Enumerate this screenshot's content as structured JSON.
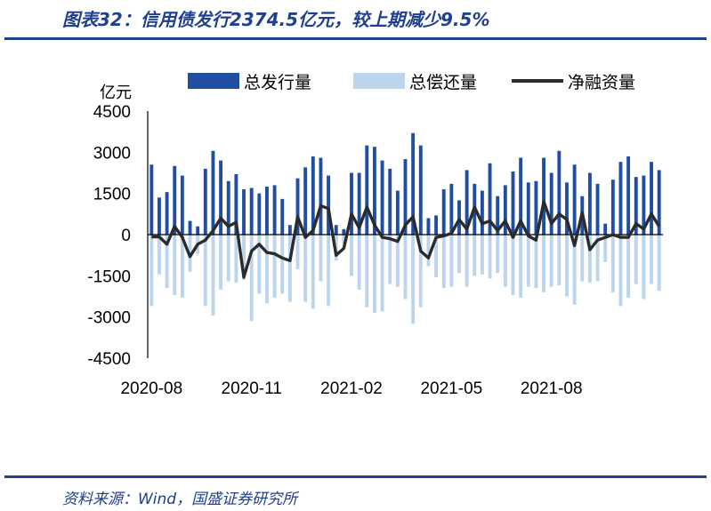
{
  "header": {
    "title": "图表32：信用债发行2374.5亿元，较上期减少9.5%"
  },
  "footer": {
    "source": "资料来源：Wind，国盛证券研究所"
  },
  "colors": {
    "issuance": "#1f4ea3",
    "repayment": "#bcd4ec",
    "net": "#2b2b2b",
    "accent": "#1f3f8f"
  },
  "chart_data": {
    "type": "bar",
    "unit_label": "亿元",
    "ylim": [
      -4500,
      4500
    ],
    "yticks": [
      4500,
      3000,
      1500,
      0,
      -1500,
      -3000,
      -4500
    ],
    "xtick_labels": [
      {
        "index": 0,
        "label": "2020-08"
      },
      {
        "index": 13,
        "label": "2020-11"
      },
      {
        "index": 26,
        "label": "2021-02"
      },
      {
        "index": 39,
        "label": "2021-05"
      },
      {
        "index": 52,
        "label": "2021-08"
      }
    ],
    "legend": [
      "总发行量",
      "总偿还量",
      "净融资量"
    ],
    "series": [
      {
        "name": "总发行量",
        "kind": "bar",
        "values": [
          2550,
          1350,
          1550,
          2500,
          2150,
          500,
          300,
          2400,
          3050,
          2700,
          1950,
          2200,
          1650,
          1700,
          1500,
          1750,
          1800,
          1300,
          350,
          2050,
          2450,
          2850,
          2800,
          2150,
          350,
          200,
          2250,
          2250,
          3250,
          3200,
          2700,
          2400,
          1600,
          2750,
          3700,
          3250,
          600,
          700,
          1650,
          1850,
          1250,
          2350,
          1850,
          1600,
          2600,
          1400,
          1800,
          2300,
          2800,
          1900,
          1950,
          2800,
          2250,
          3050,
          1900,
          2550,
          1400,
          2250,
          1850,
          400,
          2000,
          2650,
          2850,
          2100,
          2150,
          2650,
          2350
        ]
      },
      {
        "name": "总偿还量",
        "kind": "bar",
        "values": [
          -2600,
          -1450,
          -1950,
          -2200,
          -2300,
          -1350,
          -700,
          -2600,
          -2950,
          -2000,
          -1700,
          -1750,
          -1650,
          -3150,
          -2150,
          -2500,
          -2300,
          -2150,
          -2450,
          -1250,
          -2450,
          -2700,
          -1700,
          -2600,
          -950,
          -350,
          -1500,
          -2000,
          -2650,
          -2850,
          -2800,
          -1800,
          -1900,
          -2350,
          -3250,
          -2650,
          -1150,
          -1550,
          -1950,
          -1900,
          -1400,
          -1900,
          -1500,
          -1450,
          -1600,
          -1400,
          -1900,
          -2200,
          -2300,
          -1900,
          -1950,
          -2100,
          -1900,
          -1850,
          -2250,
          -2550,
          -1700,
          -1750,
          -1700,
          -1000,
          -2100,
          -2600,
          -2300,
          -1800,
          -2350,
          -1800,
          -2050
        ]
      },
      {
        "name": "净融资量",
        "kind": "line",
        "values": [
          -80,
          -80,
          -350,
          300,
          -100,
          -800,
          -350,
          -200,
          150,
          600,
          300,
          450,
          -1550,
          -600,
          -350,
          -650,
          -700,
          -850,
          -950,
          650,
          -100,
          150,
          1050,
          950,
          -750,
          -500,
          750,
          250,
          1000,
          350,
          -100,
          -150,
          -250,
          350,
          650,
          -600,
          -850,
          -100,
          -50,
          50,
          550,
          200,
          1000,
          400,
          500,
          150,
          500,
          -100,
          500,
          -50,
          -200,
          1200,
          400,
          750,
          550,
          -400,
          800,
          -550,
          -200,
          -100,
          0,
          -100,
          -100,
          400,
          200,
          750,
          300
        ]
      }
    ]
  }
}
